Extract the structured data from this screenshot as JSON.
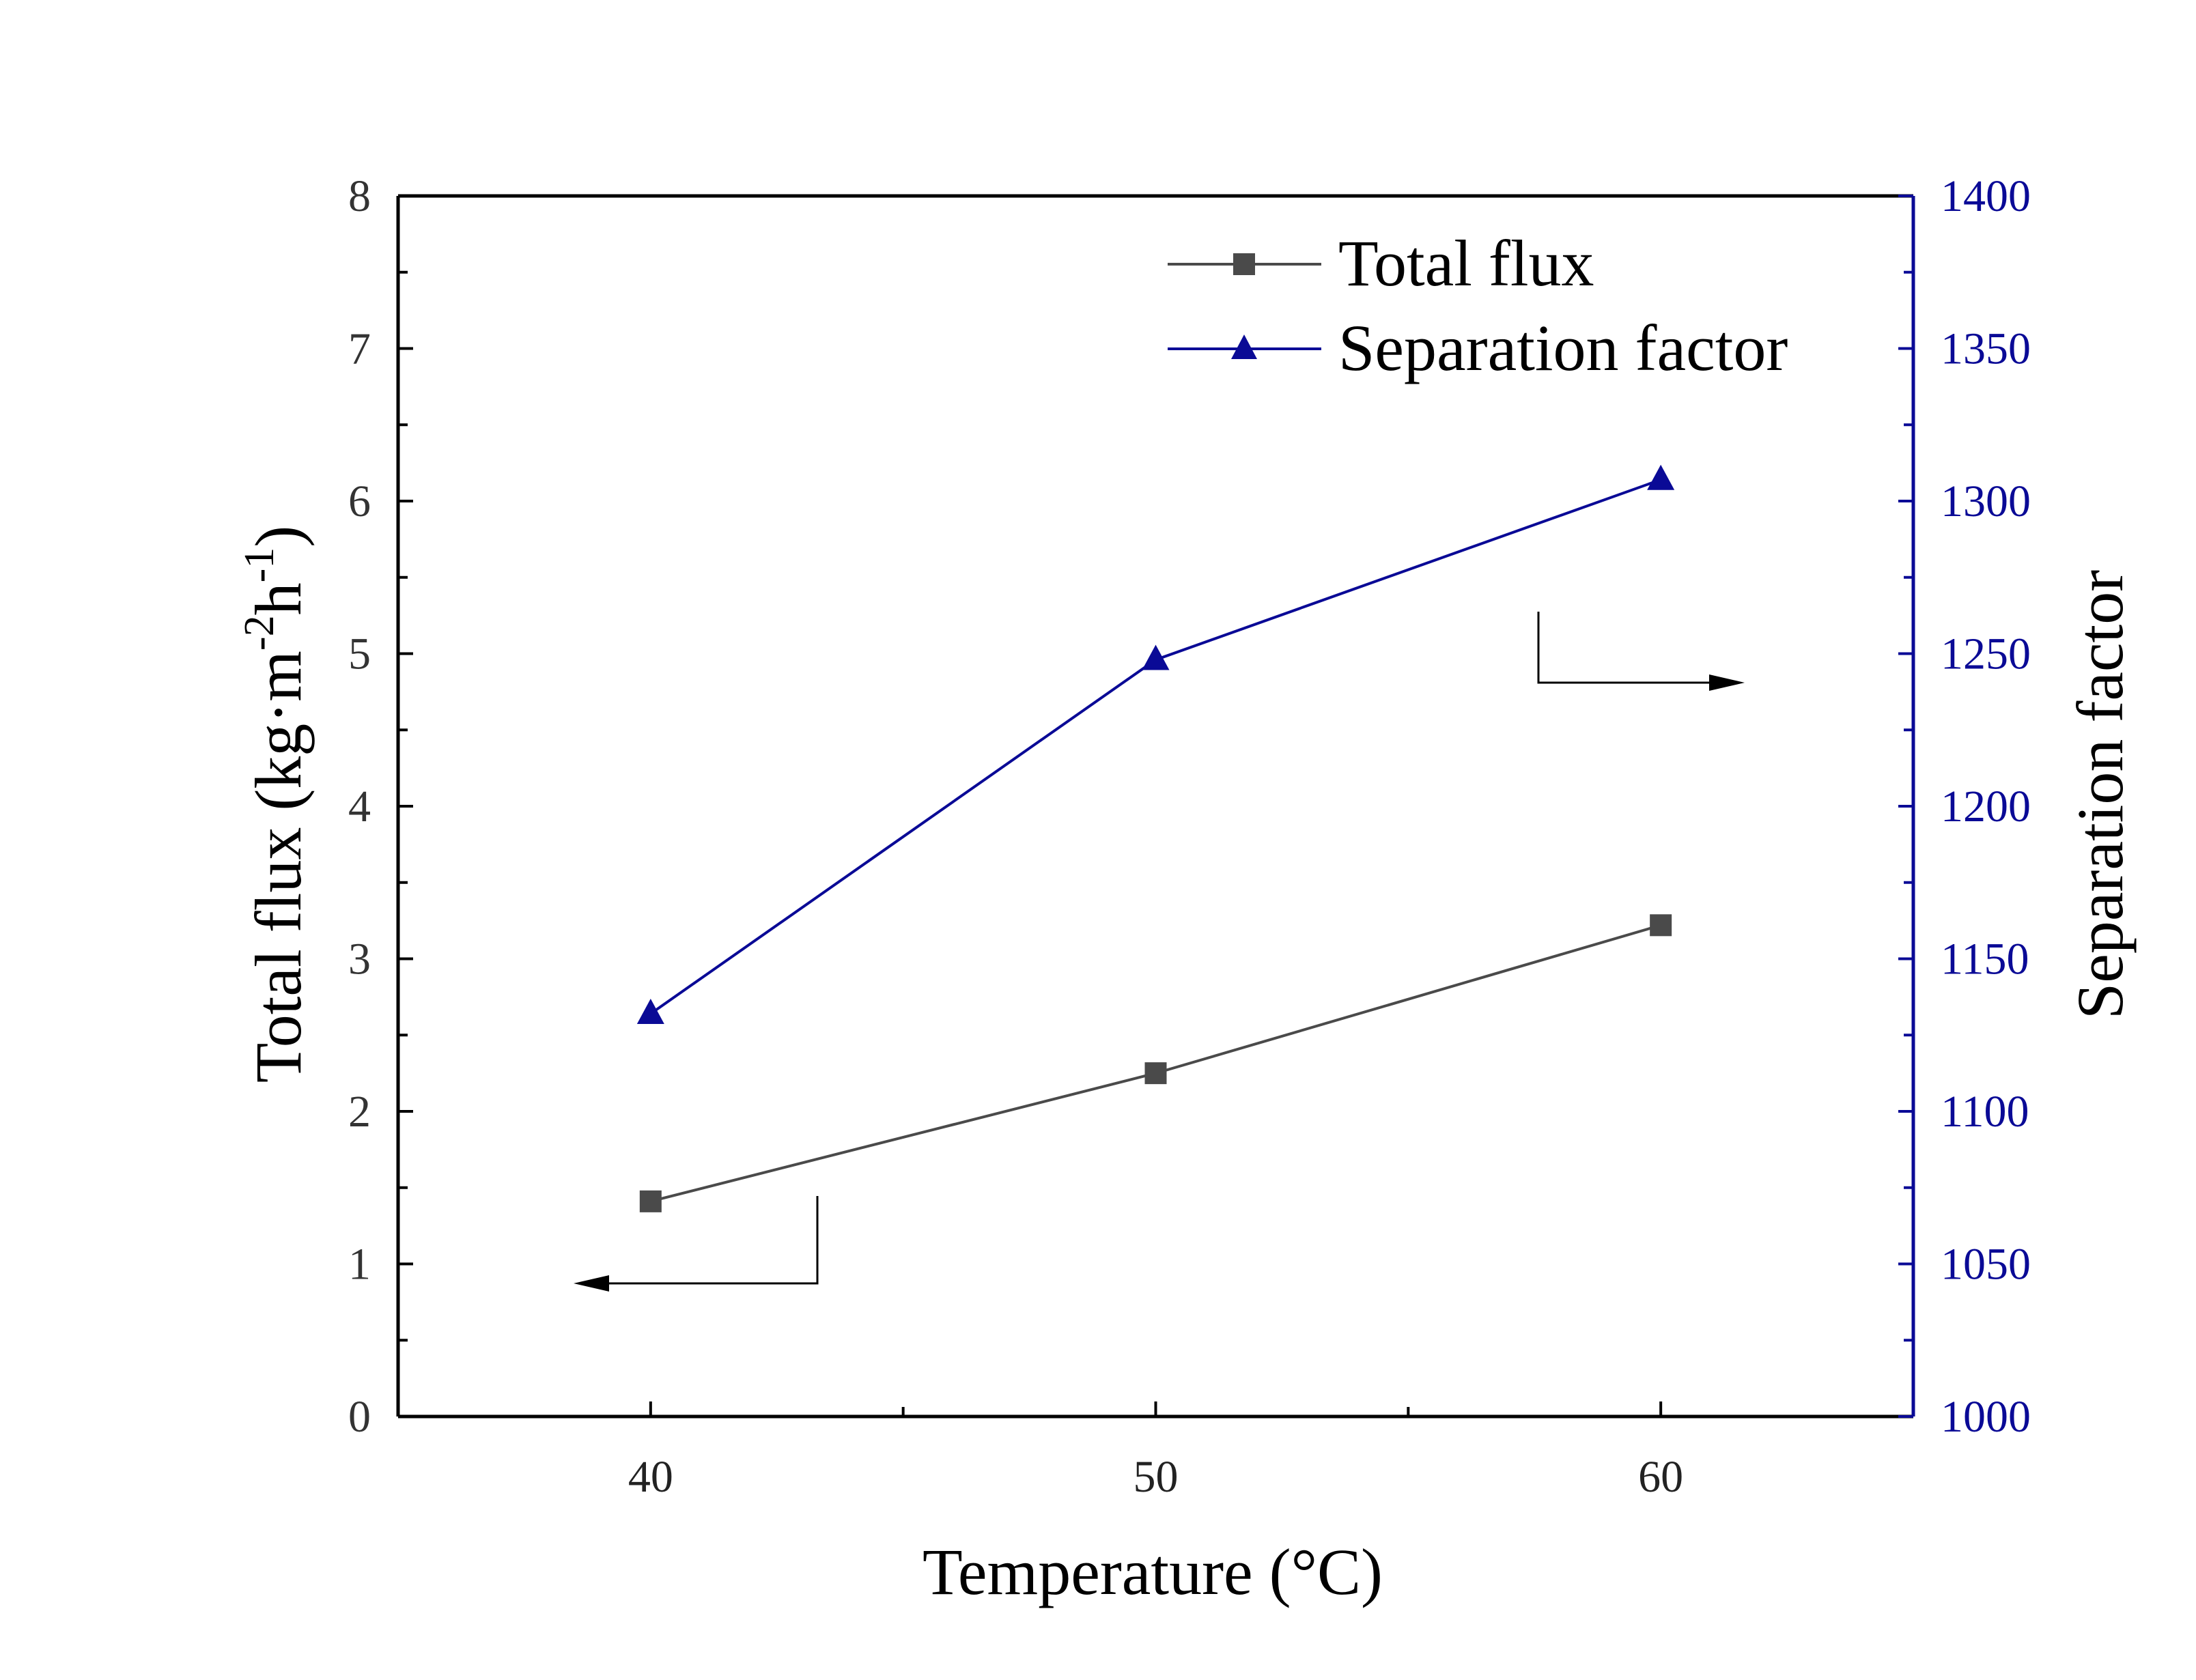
{
  "colors": {
    "flux": "#4a4a4a",
    "separation": "#0a0a96",
    "axis_left": "#000000",
    "axis_right": "#0a0a96",
    "tick_left_text": "#333333",
    "tick_right_text": "#0a0a96"
  },
  "chart_data": {
    "type": "line",
    "x": [
      40,
      50,
      60
    ],
    "xlim": [
      35,
      65
    ],
    "xticks": [
      40,
      50,
      60
    ],
    "xlabel": "Temperature (°C)",
    "ylabel_left": {
      "base": "Total flux (kg·m",
      "sup1": "-2",
      "mid": "h",
      "sup2": "-1",
      "end": ")"
    },
    "ylim_left": [
      0,
      8
    ],
    "yticks_left": [
      0,
      1,
      2,
      3,
      4,
      5,
      6,
      7,
      8
    ],
    "ylabel_right": "Separation factor",
    "ylim_right": [
      1000,
      1400
    ],
    "yticks_right": [
      1000,
      1050,
      1100,
      1150,
      1200,
      1250,
      1300,
      1350,
      1400
    ],
    "series": [
      {
        "name": "Total flux",
        "axis": "left",
        "marker": "square",
        "values": [
          1.41,
          2.25,
          3.22
        ]
      },
      {
        "name": "Separation factor",
        "axis": "right",
        "marker": "triangle",
        "values": [
          1132,
          1248,
          1307
        ]
      }
    ],
    "legend_position": "top-right",
    "grid": false
  }
}
